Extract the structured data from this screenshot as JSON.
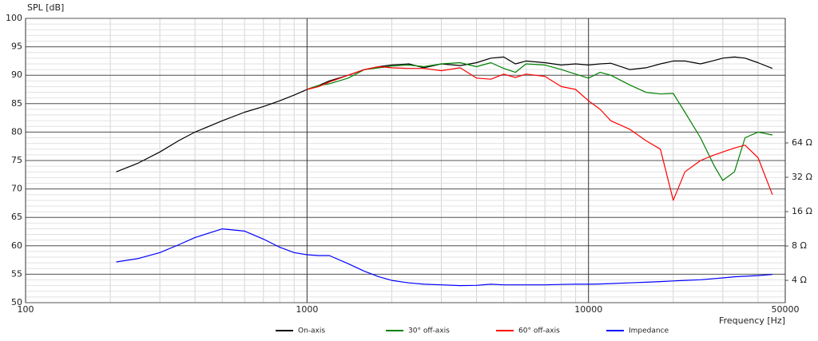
{
  "chart_data": {
    "type": "line",
    "y_label": "SPL [dB]",
    "x_label": "Frequency [Hz]",
    "xscale": "log",
    "xlim": [
      100,
      50000
    ],
    "xticks": [
      100,
      1000,
      10000,
      50000
    ],
    "ylim": [
      50,
      100
    ],
    "yticks": [
      50,
      55,
      60,
      65,
      70,
      75,
      80,
      85,
      90,
      95,
      100
    ],
    "y2scale": "log",
    "y2lim": [
      2.55,
      790
    ],
    "y2ticks": [
      {
        "value": 4,
        "label": "4 Ω"
      },
      {
        "value": 8,
        "label": "8 Ω"
      },
      {
        "value": 16,
        "label": "16 Ω"
      },
      {
        "value": 32,
        "label": "32 Ω"
      },
      {
        "value": 64,
        "label": "64 Ω"
      }
    ],
    "grid": true,
    "minor_grid": true,
    "legend": "bottom",
    "x": [
      210,
      250,
      300,
      350,
      400,
      500,
      600,
      700,
      800,
      900,
      1000,
      1100,
      1200,
      1400,
      1600,
      1800,
      2000,
      2300,
      2600,
      3000,
      3500,
      4000,
      4500,
      5000,
      5500,
      6000,
      7000,
      8000,
      9000,
      10000,
      11000,
      12000,
      14000,
      16000,
      18000,
      20000,
      22000,
      25000,
      28000,
      30000,
      33000,
      36000,
      40000,
      45000
    ],
    "series": [
      {
        "name": "On-axis",
        "color": "#000000",
        "values": [
          73,
          74.5,
          76.5,
          78.5,
          80,
          82,
          83.5,
          84.5,
          85.5,
          86.5,
          87.5,
          88.2,
          89,
          90,
          91,
          91.5,
          91.8,
          92,
          91.3,
          92,
          91.7,
          92.2,
          93,
          93.2,
          92,
          92.5,
          92.2,
          91.8,
          92,
          91.8,
          92,
          92.1,
          91,
          91.3,
          92,
          92.5,
          92.5,
          92,
          92.6,
          93,
          93.2,
          93,
          92.2,
          91.2
        ]
      },
      {
        "name": "30° off-axis",
        "color": "#008000",
        "values": [
          null,
          null,
          null,
          null,
          null,
          null,
          null,
          null,
          null,
          null,
          87.5,
          88.2,
          88.5,
          89.5,
          91,
          91.3,
          91.6,
          91.8,
          91.5,
          92,
          92.2,
          91.5,
          92.2,
          91.2,
          90.5,
          92,
          91.8,
          91,
          90.2,
          89.5,
          90.5,
          90,
          88.3,
          87,
          86.7,
          86.8,
          83.5,
          79,
          74,
          71.5,
          73,
          79,
          80,
          79.5
        ]
      },
      {
        "name": "60° off-axis",
        "color": "#ff0000",
        "values": [
          null,
          null,
          null,
          null,
          null,
          null,
          null,
          null,
          null,
          null,
          87.5,
          88,
          88.8,
          90,
          91,
          91.5,
          91.3,
          91.2,
          91.2,
          90.8,
          91.3,
          89.5,
          89.3,
          90.2,
          89.6,
          90.2,
          89.8,
          88,
          87.5,
          85.5,
          84,
          82,
          80.5,
          78.5,
          77,
          68,
          73,
          75,
          76,
          76.5,
          77.2,
          77.7,
          75.5,
          69
        ]
      },
      {
        "name": "Impedance",
        "color": "#0000ff",
        "axis": "y2",
        "values": [
          5.8,
          6.2,
          7,
          8.2,
          9.5,
          11.3,
          10.8,
          9.2,
          7.8,
          7,
          6.7,
          6.6,
          6.6,
          5.6,
          4.8,
          4.3,
          4.0,
          3.8,
          3.7,
          3.65,
          3.6,
          3.62,
          3.7,
          3.65,
          3.65,
          3.65,
          3.65,
          3.68,
          3.7,
          3.7,
          3.72,
          3.75,
          3.8,
          3.85,
          3.9,
          3.95,
          4.0,
          4.05,
          4.15,
          4.2,
          4.3,
          4.35,
          4.4,
          4.5
        ]
      }
    ]
  }
}
